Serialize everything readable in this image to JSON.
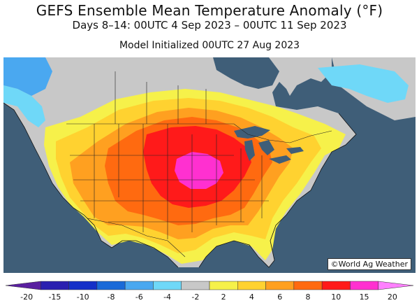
{
  "title": "GEFS Ensemble Mean Temperature Anomaly (°F)",
  "subtitle": "Days 8–14: 00UTC 4 Sep 2023 – 00UTC 11 Sep 2023",
  "initialized": "Model Initialized 00UTC 27 Aug 2023",
  "copyright": "©World Ag Weather",
  "colors": {
    "ocean": "#3f5e78",
    "neutral_gray": "#c8c8c8",
    "bins": [
      "#5a1fa0",
      "#2a1fb0",
      "#1530c8",
      "#1a6ad8",
      "#4aa8f0",
      "#6fd8f8",
      "#c8c8c8",
      "#f6f14a",
      "#ffd230",
      "#ffa020",
      "#ff6a10",
      "#ff1a1a",
      "#ff30d0",
      "#ff80ff"
    ]
  },
  "colorbar": {
    "ticks": [
      "-20",
      "-15",
      "-10",
      "-8",
      "-6",
      "-4",
      "-2",
      "2",
      "4",
      "6",
      "8",
      "10",
      "15",
      "20"
    ]
  }
}
